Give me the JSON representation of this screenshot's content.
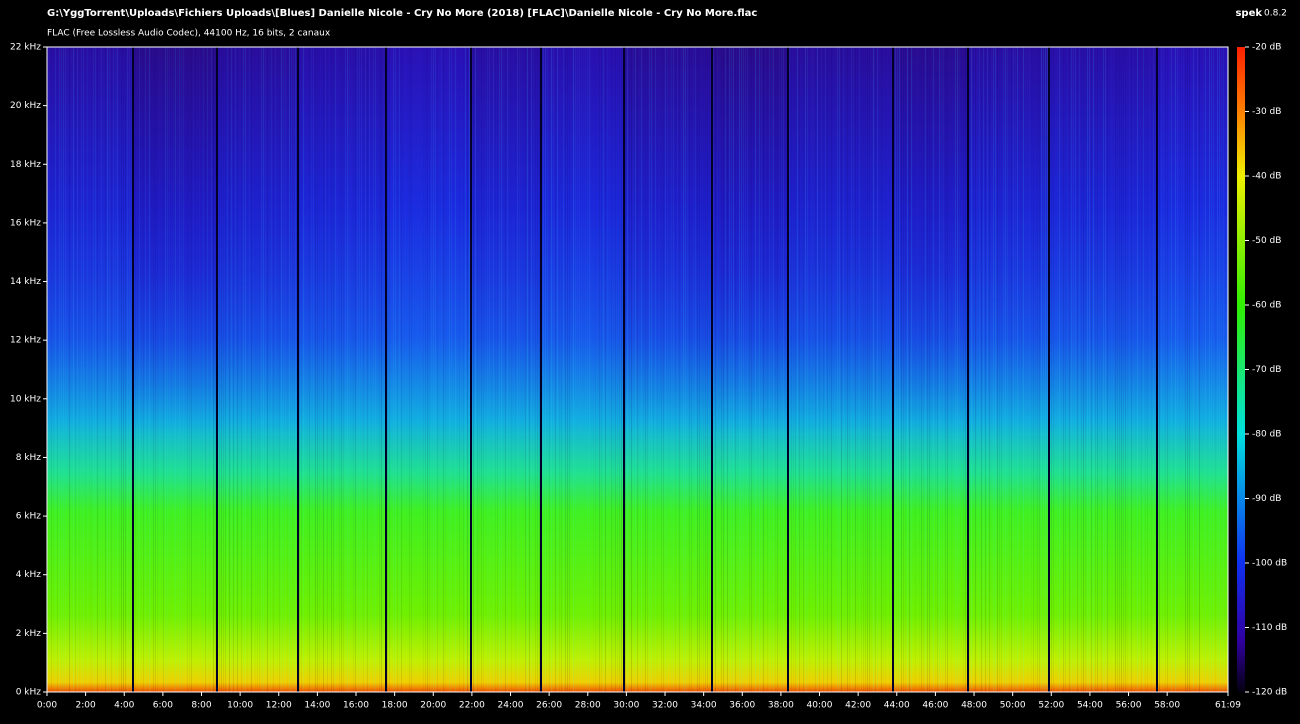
{
  "app_name": "spek",
  "app_version": "0.8.2",
  "chart_data": {
    "type": "spectrogram",
    "title": "G:\\YggTorrent\\Uploads\\Fichiers Uploads\\[Blues] Danielle Nicole - Cry No More (2018) [FLAC]\\Danielle Nicole - Cry No More.flac",
    "subtitle": "FLAC (Free Lossless Audio Codec), 44100 Hz, 16 bits, 2 canaux",
    "xlim": [
      0,
      61.15
    ],
    "xticks": [
      {
        "value": 0,
        "label": "0:00"
      },
      {
        "value": 2,
        "label": "2:00"
      },
      {
        "value": 4,
        "label": "4:00"
      },
      {
        "value": 6,
        "label": "6:00"
      },
      {
        "value": 8,
        "label": "8:00"
      },
      {
        "value": 10,
        "label": "10:00"
      },
      {
        "value": 12,
        "label": "12:00"
      },
      {
        "value": 14,
        "label": "14:00"
      },
      {
        "value": 16,
        "label": "16:00"
      },
      {
        "value": 18,
        "label": "18:00"
      },
      {
        "value": 20,
        "label": "20:00"
      },
      {
        "value": 22,
        "label": "22:00"
      },
      {
        "value": 24,
        "label": "24:00"
      },
      {
        "value": 26,
        "label": "26:00"
      },
      {
        "value": 28,
        "label": "28:00"
      },
      {
        "value": 30,
        "label": "30:00"
      },
      {
        "value": 32,
        "label": "32:00"
      },
      {
        "value": 34,
        "label": "34:00"
      },
      {
        "value": 36,
        "label": "36:00"
      },
      {
        "value": 38,
        "label": "38:00"
      },
      {
        "value": 40,
        "label": "40:00"
      },
      {
        "value": 42,
        "label": "42:00"
      },
      {
        "value": 44,
        "label": "44:00"
      },
      {
        "value": 46,
        "label": "46:00"
      },
      {
        "value": 48,
        "label": "48:00"
      },
      {
        "value": 50,
        "label": "50:00"
      },
      {
        "value": 52,
        "label": "52:00"
      },
      {
        "value": 54,
        "label": "54:00"
      },
      {
        "value": 56,
        "label": "56:00"
      },
      {
        "value": 58,
        "label": "58:00"
      },
      {
        "value": 61.15,
        "label": "61:09"
      }
    ],
    "ylim": [
      0,
      22
    ],
    "yticks": [
      {
        "value": 0,
        "label": "0 kHz"
      },
      {
        "value": 2,
        "label": "2 kHz"
      },
      {
        "value": 4,
        "label": "4 kHz"
      },
      {
        "value": 6,
        "label": "6 kHz"
      },
      {
        "value": 8,
        "label": "8 kHz"
      },
      {
        "value": 10,
        "label": "10 kHz"
      },
      {
        "value": 12,
        "label": "12 kHz"
      },
      {
        "value": 14,
        "label": "14 kHz"
      },
      {
        "value": 16,
        "label": "16 kHz"
      },
      {
        "value": 18,
        "label": "18 kHz"
      },
      {
        "value": 20,
        "label": "20 kHz"
      },
      {
        "value": 22,
        "label": "22 kHz"
      }
    ],
    "colorbar": {
      "lim": [
        -120,
        -20
      ],
      "ticks": [
        {
          "value": -20,
          "label": "-20 dB"
        },
        {
          "value": -30,
          "label": "-30 dB"
        },
        {
          "value": -40,
          "label": "-40 dB"
        },
        {
          "value": -50,
          "label": "-50 dB"
        },
        {
          "value": -60,
          "label": "-60 dB"
        },
        {
          "value": -70,
          "label": "-70 dB"
        },
        {
          "value": -80,
          "label": "-80 dB"
        },
        {
          "value": -90,
          "label": "-90 dB"
        },
        {
          "value": -100,
          "label": "-100 dB"
        },
        {
          "value": -110,
          "label": "-110 dB"
        },
        {
          "value": -120,
          "label": "-120 dB"
        }
      ]
    }
  }
}
